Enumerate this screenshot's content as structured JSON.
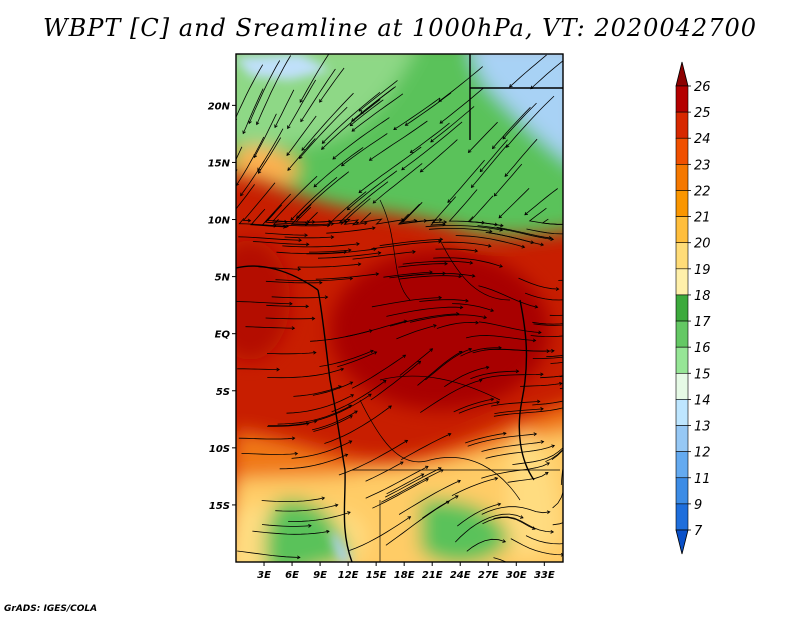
{
  "title": "WBPT [C] and Sreamline at 1000hPa, VT: 2020042700",
  "credit": "GrADS: IGES/COLA",
  "map": {
    "lat_labels": [
      {
        "text": "20N",
        "lat": 20
      },
      {
        "text": "15N",
        "lat": 15
      },
      {
        "text": "10N",
        "lat": 10
      },
      {
        "text": "5N",
        "lat": 5
      },
      {
        "text": "EQ",
        "lat": 0
      },
      {
        "text": "5S",
        "lat": -5
      },
      {
        "text": "10S",
        "lat": -10
      },
      {
        "text": "15S",
        "lat": -15
      }
    ],
    "lon_labels": [
      {
        "text": "3E",
        "lon": 3
      },
      {
        "text": "6E",
        "lon": 6
      },
      {
        "text": "9E",
        "lon": 9
      },
      {
        "text": "12E",
        "lon": 12
      },
      {
        "text": "15E",
        "lon": 15
      },
      {
        "text": "18E",
        "lon": 18
      },
      {
        "text": "21E",
        "lon": 21
      },
      {
        "text": "24E",
        "lon": 24
      },
      {
        "text": "27E",
        "lon": 27
      },
      {
        "text": "30E",
        "lon": 30
      },
      {
        "text": "33E",
        "lon": 33
      }
    ],
    "lon_range": [
      0,
      35
    ],
    "lat_range": [
      -20,
      24.5
    ]
  },
  "colorbar": {
    "levels": [
      "26",
      "25",
      "24",
      "23",
      "22",
      "21",
      "20",
      "19",
      "18",
      "17",
      "16",
      "15",
      "14",
      "13",
      "12",
      "11",
      "9",
      "7"
    ],
    "colors": [
      "#8c0000",
      "#b40000",
      "#d72800",
      "#f05000",
      "#f57800",
      "#fa9600",
      "#ffbe3c",
      "#ffdc78",
      "#fff0aa",
      "#3caa3c",
      "#64c864",
      "#96e696",
      "#e6fae6",
      "#bee6ff",
      "#96c8f5",
      "#64aaf0",
      "#3c8ce6",
      "#1e6edc",
      "#0a50c8"
    ]
  },
  "colors": {
    "hot": "#c81e00",
    "warm": "#f07814",
    "yellow": "#ffdc80",
    "green": "#5ac25a",
    "light_green": "#a6e49a",
    "blue": "#a8d2f5"
  }
}
